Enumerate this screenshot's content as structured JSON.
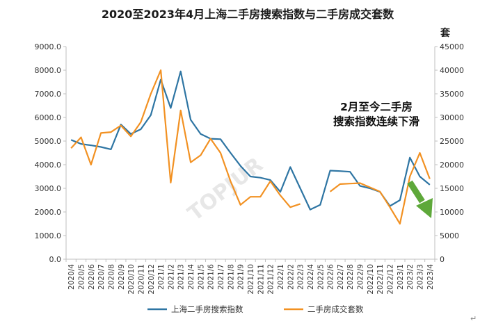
{
  "chart_data": {
    "type": "line",
    "title": "2020至2023年4月上海二手房搜索指数与二手房成交套数",
    "y2_unit": "套",
    "annotation": "2月至今二手房搜索指数连续下滑",
    "watermark": "TOPJUR",
    "end_mark": "↵",
    "categories": [
      "2020/4",
      "2020/5",
      "2020/6",
      "2020/7",
      "2020/8",
      "2020/9",
      "2020/10",
      "2020/11",
      "2020/12",
      "2021/1",
      "2021/2",
      "2021/3",
      "2021/4",
      "2021/5",
      "2021/6",
      "2021/7",
      "2021/8",
      "2021/9",
      "2021/10",
      "2021/11",
      "2021/12",
      "2022/1",
      "2022/2",
      "2022/3",
      "2022/4",
      "2022/5",
      "2022/6",
      "2022/7",
      "2022/8",
      "2022/9",
      "2022/10",
      "2022/11",
      "2022/12",
      "2023/1",
      "2023/2",
      "2023/3",
      "2023/4"
    ],
    "ylim": [
      0,
      9000
    ],
    "y_ticks": [
      "0.0",
      "1000.0",
      "2000.0",
      "3000.0",
      "4000.0",
      "5000.0",
      "6000.0",
      "7000.0",
      "8000.0",
      "9000.0"
    ],
    "y2lim": [
      0,
      45000
    ],
    "y2_ticks": [
      "0",
      "5000",
      "10000",
      "15000",
      "20000",
      "25000",
      "30000",
      "35000",
      "40000",
      "45000"
    ],
    "grid": false,
    "legend_position": "bottom",
    "series": [
      {
        "name": "上海二手房搜索指数",
        "axis": "left",
        "color": "#2e75a3",
        "values": [
          5050,
          4880,
          4820,
          4750,
          4650,
          5700,
          5300,
          5500,
          6100,
          7600,
          6400,
          7950,
          5900,
          5300,
          5100,
          5080,
          4500,
          3950,
          3500,
          3450,
          3350,
          2850,
          3900,
          3000,
          2100,
          2300,
          3750,
          3730,
          3700,
          3100,
          3000,
          2850,
          2250,
          2500,
          4300,
          3500,
          3150
        ]
      },
      {
        "name": "二手房成交套数",
        "axis": "right",
        "color": "#f29122",
        "values": [
          23500,
          25800,
          20000,
          26700,
          26900,
          28300,
          26000,
          29000,
          35000,
          40000,
          16200,
          31500,
          20500,
          22000,
          25500,
          22500,
          16500,
          11500,
          13200,
          13200,
          16500,
          13500,
          11000,
          11700,
          null,
          null,
          14300,
          15900,
          16000,
          16100,
          15200,
          14300,
          11000,
          7500,
          17500,
          22500,
          17000
        ]
      }
    ]
  }
}
